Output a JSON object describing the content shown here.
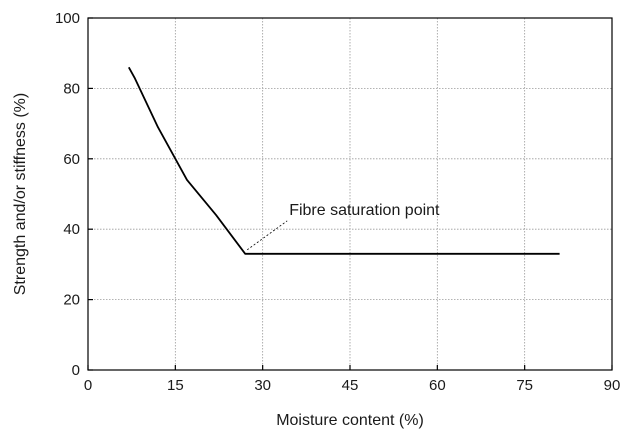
{
  "chart_data": {
    "type": "line",
    "xlabel": "Moisture content (%)",
    "ylabel": "Strength and/or stiffness (%)",
    "xlim": [
      0,
      90
    ],
    "ylim": [
      0,
      100
    ],
    "xticks": [
      0,
      15,
      30,
      45,
      60,
      75,
      90
    ],
    "yticks": [
      0,
      20,
      40,
      60,
      80,
      100
    ],
    "grid": true,
    "series": [
      {
        "x": [
          7,
          8,
          12,
          17,
          22,
          27,
          81
        ],
        "y": [
          86,
          83,
          69,
          54,
          44,
          33,
          33
        ]
      }
    ],
    "annotations": [
      {
        "text": "Fibre saturation point",
        "x": 27,
        "y": 33
      }
    ]
  }
}
